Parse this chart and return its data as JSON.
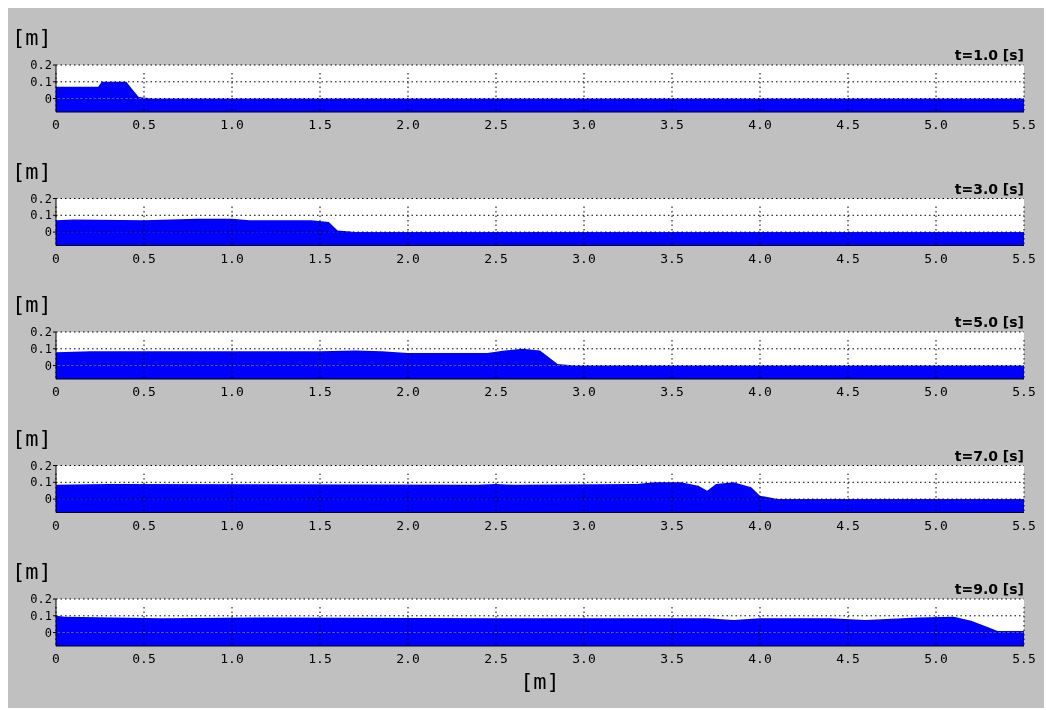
{
  "chart_data": [
    {
      "type": "area",
      "title": "t=1.0 [s]",
      "ylabel": "[m]",
      "color": "#0000ff",
      "x": [
        0,
        0.24,
        0.26,
        0.4,
        0.43,
        0.47,
        0.55,
        5.5
      ],
      "values": [
        0.07,
        0.07,
        0.1,
        0.1,
        0.06,
        0.01,
        0,
        0
      ],
      "xlim": [
        0,
        5.5
      ],
      "xticks": [
        {
          "value": 0,
          "label": "0"
        },
        {
          "value": 0.5,
          "label": "0.5"
        },
        {
          "value": 1,
          "label": "1.0"
        },
        {
          "value": 1.5,
          "label": "1.5"
        },
        {
          "value": 2,
          "label": "2.0"
        },
        {
          "value": 2.5,
          "label": "2.5"
        },
        {
          "value": 3,
          "label": "3.0"
        },
        {
          "value": 3.5,
          "label": "3.5"
        },
        {
          "value": 4,
          "label": "4.0"
        },
        {
          "value": 4.5,
          "label": "4.5"
        },
        {
          "value": 5,
          "label": "5.0"
        },
        {
          "value": 5.5,
          "label": "5.5"
        }
      ],
      "ylim": [
        -0.08,
        0.2
      ],
      "yticks": [
        0,
        0.1,
        0.2
      ],
      "grid": true,
      "bands": [
        {
          "axis": "y",
          "from": -0.08,
          "to": 0,
          "color": "#0000ff"
        }
      ]
    },
    {
      "type": "area",
      "title": "t=3.0 [s]",
      "ylabel": "[m]",
      "color": "#0000ff",
      "x": [
        0,
        0.1,
        0.5,
        0.8,
        1.0,
        1.1,
        1.45,
        1.55,
        1.6,
        1.7,
        5.5
      ],
      "values": [
        0.07,
        0.075,
        0.07,
        0.08,
        0.08,
        0.07,
        0.07,
        0.06,
        0.01,
        0,
        0
      ],
      "xlim": [
        0,
        5.5
      ],
      "xticks": [
        {
          "value": 0,
          "label": "0"
        },
        {
          "value": 0.5,
          "label": "0.5"
        },
        {
          "value": 1,
          "label": "1.0"
        },
        {
          "value": 1.5,
          "label": "1.5"
        },
        {
          "value": 2,
          "label": "2.0"
        },
        {
          "value": 2.5,
          "label": "2.5"
        },
        {
          "value": 3,
          "label": "3.0"
        },
        {
          "value": 3.5,
          "label": "3.5"
        },
        {
          "value": 4,
          "label": "4.0"
        },
        {
          "value": 4.5,
          "label": "4.5"
        },
        {
          "value": 5,
          "label": "5.0"
        },
        {
          "value": 5.5,
          "label": "5.5"
        }
      ],
      "ylim": [
        -0.08,
        0.2
      ],
      "yticks": [
        0,
        0.1,
        0.2
      ],
      "grid": true,
      "bands": [
        {
          "axis": "y",
          "from": -0.08,
          "to": 0,
          "color": "#0000ff"
        }
      ]
    },
    {
      "type": "area",
      "title": "t=5.0 [s]",
      "ylabel": "[m]",
      "color": "#0000ff",
      "x": [
        0,
        0.2,
        1.5,
        1.7,
        1.85,
        2.0,
        2.45,
        2.55,
        2.65,
        2.75,
        2.8,
        2.85,
        2.95,
        5.5
      ],
      "values": [
        0.08,
        0.085,
        0.085,
        0.09,
        0.085,
        0.075,
        0.075,
        0.09,
        0.1,
        0.09,
        0.05,
        0.01,
        0,
        0
      ],
      "xlim": [
        0,
        5.5
      ],
      "xticks": [
        {
          "value": 0,
          "label": "0"
        },
        {
          "value": 0.5,
          "label": "0.5"
        },
        {
          "value": 1,
          "label": "1.0"
        },
        {
          "value": 1.5,
          "label": "1.5"
        },
        {
          "value": 2,
          "label": "2.0"
        },
        {
          "value": 2.5,
          "label": "2.5"
        },
        {
          "value": 3,
          "label": "3.0"
        },
        {
          "value": 3.5,
          "label": "3.5"
        },
        {
          "value": 4,
          "label": "4.0"
        },
        {
          "value": 4.5,
          "label": "4.5"
        },
        {
          "value": 5,
          "label": "5.0"
        },
        {
          "value": 5.5,
          "label": "5.5"
        }
      ],
      "ylim": [
        -0.08,
        0.2
      ],
      "yticks": [
        0,
        0.1,
        0.2
      ],
      "grid": true,
      "bands": [
        {
          "axis": "y",
          "from": -0.08,
          "to": 0,
          "color": "#0000ff"
        }
      ]
    },
    {
      "type": "area",
      "title": "t=7.0 [s]",
      "ylabel": "[m]",
      "color": "#0000ff",
      "x": [
        0,
        0.3,
        2.4,
        2.5,
        2.6,
        3.3,
        3.4,
        3.55,
        3.65,
        3.7,
        3.75,
        3.85,
        3.95,
        4.0,
        4.1,
        5.5
      ],
      "values": [
        0.085,
        0.09,
        0.085,
        0.09,
        0.085,
        0.09,
        0.1,
        0.1,
        0.08,
        0.05,
        0.09,
        0.1,
        0.07,
        0.02,
        0,
        0
      ],
      "xlim": [
        0,
        5.5
      ],
      "xticks": [
        {
          "value": 0,
          "label": "0"
        },
        {
          "value": 0.5,
          "label": "0.5"
        },
        {
          "value": 1,
          "label": "1.0"
        },
        {
          "value": 1.5,
          "label": "1.5"
        },
        {
          "value": 2,
          "label": "2.0"
        },
        {
          "value": 2.5,
          "label": "2.5"
        },
        {
          "value": 3,
          "label": "3.0"
        },
        {
          "value": 3.5,
          "label": "3.5"
        },
        {
          "value": 4,
          "label": "4.0"
        },
        {
          "value": 4.5,
          "label": "4.5"
        },
        {
          "value": 5,
          "label": "5.0"
        },
        {
          "value": 5.5,
          "label": "5.5"
        }
      ],
      "ylim": [
        -0.08,
        0.2
      ],
      "yticks": [
        0,
        0.1,
        0.2
      ],
      "grid": true,
      "bands": [
        {
          "axis": "y",
          "from": -0.08,
          "to": 0,
          "color": "#0000ff"
        }
      ]
    },
    {
      "type": "area",
      "title": "t=9.0 [s]",
      "ylabel": "[m]",
      "xlabel": "[m]",
      "color": "#0000ff",
      "x": [
        0,
        0.05,
        0.6,
        1.2,
        2.5,
        3.7,
        3.85,
        4.0,
        4.4,
        4.6,
        4.9,
        5.1,
        5.2,
        5.3,
        5.35,
        5.5
      ],
      "values": [
        0.1,
        0.095,
        0.085,
        0.09,
        0.085,
        0.085,
        0.075,
        0.085,
        0.085,
        0.075,
        0.09,
        0.095,
        0.07,
        0.03,
        0.01,
        0.01
      ],
      "xlim": [
        0,
        5.5
      ],
      "xticks": [
        {
          "value": 0,
          "label": "0"
        },
        {
          "value": 0.5,
          "label": "0.5"
        },
        {
          "value": 1,
          "label": "1.0"
        },
        {
          "value": 1.5,
          "label": "1.5"
        },
        {
          "value": 2,
          "label": "2.0"
        },
        {
          "value": 2.5,
          "label": "2.5"
        },
        {
          "value": 3,
          "label": "3.0"
        },
        {
          "value": 3.5,
          "label": "3.5"
        },
        {
          "value": 4,
          "label": "4.0"
        },
        {
          "value": 4.5,
          "label": "4.5"
        },
        {
          "value": 5,
          "label": "5.0"
        },
        {
          "value": 5.5,
          "label": "5.5"
        }
      ],
      "ylim": [
        -0.08,
        0.2
      ],
      "yticks": [
        0,
        0.1,
        0.2
      ],
      "grid": true,
      "bands": [
        {
          "axis": "y",
          "from": -0.08,
          "to": 0,
          "color": "#0000ff"
        }
      ]
    }
  ]
}
